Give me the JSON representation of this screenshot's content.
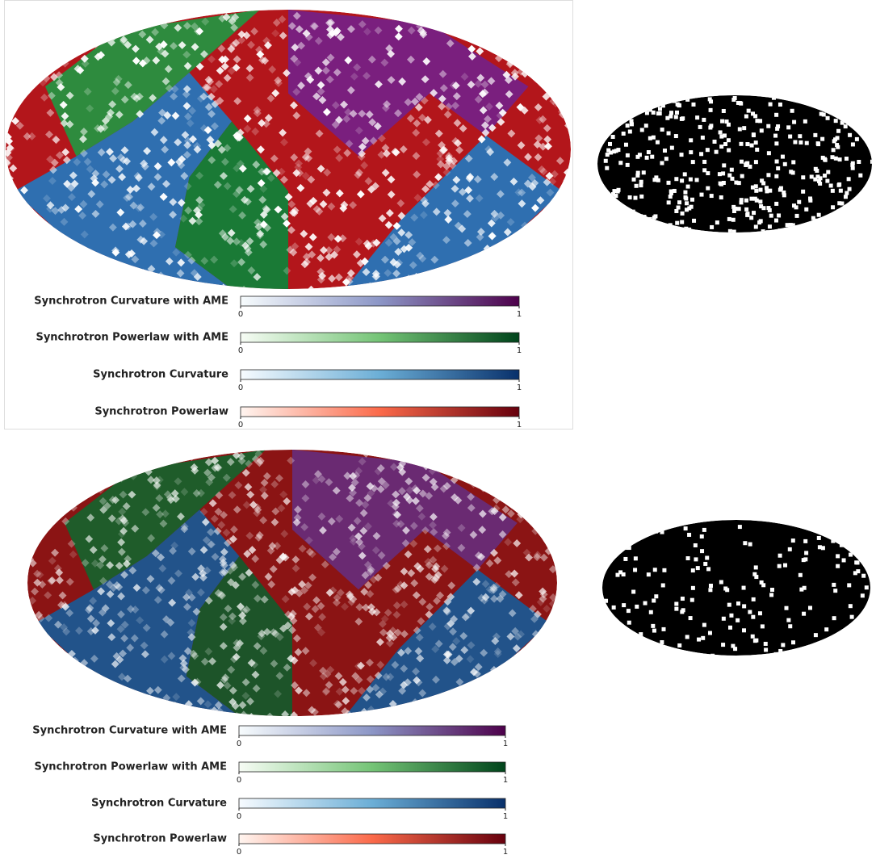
{
  "panels": [
    {
      "colorbars": [
        {
          "label": "Synchrotron Curvature with AME",
          "ticks": [
            0,
            1
          ]
        },
        {
          "label": "Synchrotron Powerlaw with AME",
          "ticks": [
            0,
            1
          ]
        },
        {
          "label": "Synchrotron Curvature",
          "ticks": [
            0,
            1
          ]
        },
        {
          "label": "Synchrotron Powerlaw",
          "ticks": [
            0,
            1
          ]
        }
      ]
    },
    {
      "colorbars": [
        {
          "label": "Synchrotron Curvature with AME",
          "ticks": [
            0,
            1
          ]
        },
        {
          "label": "Synchrotron Powerlaw with AME",
          "ticks": [
            0,
            1
          ]
        },
        {
          "label": "Synchrotron Curvature",
          "ticks": [
            0,
            1
          ]
        },
        {
          "label": "Synchrotron Powerlaw",
          "ticks": [
            0,
            1
          ]
        }
      ]
    }
  ]
}
